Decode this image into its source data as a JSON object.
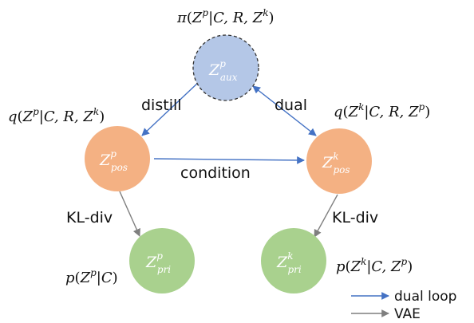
{
  "nodes": {
    "aux": {
      "main": "Z",
      "sup": "p",
      "sub": "aux",
      "fill": "#b4c7e7",
      "stroke": "#333333"
    },
    "pos_p": {
      "main": "Z",
      "sup": "p",
      "sub": "pos",
      "fill": "#f4b183"
    },
    "pos_k": {
      "main": "Z",
      "sup": "k",
      "sub": "pos",
      "fill": "#f4b183"
    },
    "pri_p": {
      "main": "Z",
      "sup": "p",
      "sub": "pri",
      "fill": "#a9d18e"
    },
    "pri_k": {
      "main": "Z",
      "sup": "k",
      "sub": "pri",
      "fill": "#a9d18e"
    }
  },
  "formulas": {
    "pi_aux": {
      "fn": "π",
      "open": "(",
      "Z1": "Z",
      "s1": "p",
      "given": "|C, R, ",
      "Z2": "Z",
      "s2": "k",
      "close": ")"
    },
    "q_p": {
      "fn": "q",
      "open": "(",
      "Z1": "Z",
      "s1": "p",
      "given": "|C, R, ",
      "Z2": "Z",
      "s2": "k",
      "close": ")"
    },
    "q_k": {
      "fn": "q",
      "open": "(",
      "Z1": "Z",
      "s1": "k",
      "given": "|C, R, ",
      "Z2": "Z",
      "s2": "p",
      "close": ")"
    },
    "p_p": {
      "fn": "p",
      "open": "(",
      "Z1": "Z",
      "s1": "p",
      "given": "|C",
      "close": ")"
    },
    "p_k": {
      "fn": "p",
      "open": "(",
      "Z1": "Z",
      "s1": "k",
      "given": "|C, ",
      "Z2": "Z",
      "s2": "p",
      "close": ")"
    }
  },
  "edge_labels": {
    "distill": "distill",
    "dual": "dual",
    "condition": "condition",
    "kl_left": "KL-div",
    "kl_right": "KL-div"
  },
  "legend": {
    "dual_loop": "dual loop",
    "vae": "VAE"
  },
  "colors": {
    "dual_loop_arrow": "#4472c4",
    "vae_arrow": "#7f7f7f"
  }
}
